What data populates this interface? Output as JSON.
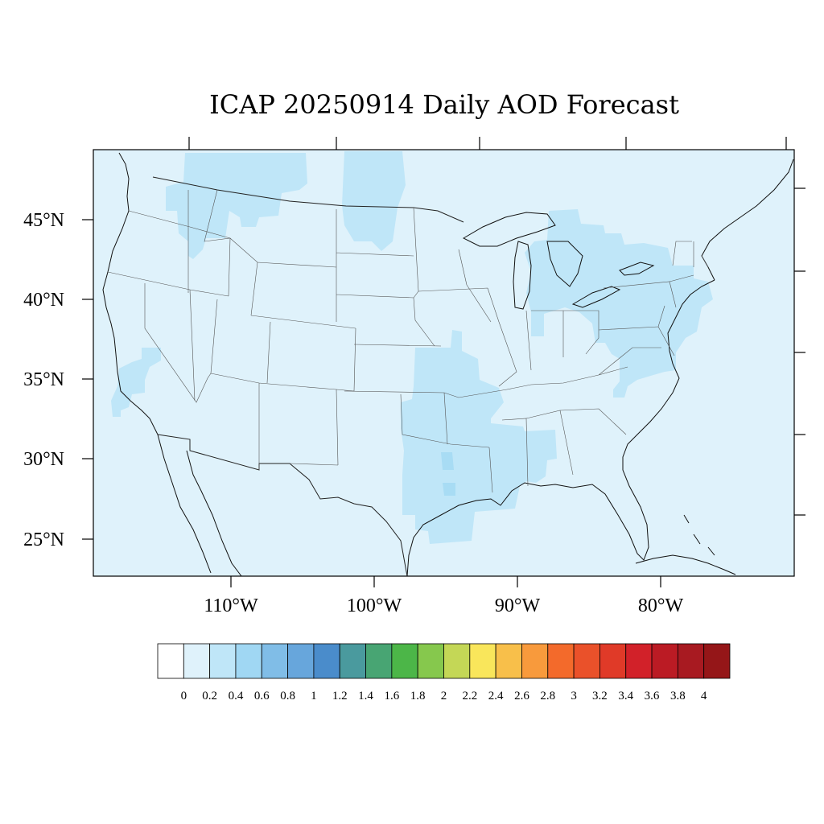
{
  "map": {
    "title": "ICAP 20250914 Daily AOD Forecast",
    "lat_labels": [
      "45°N",
      "40°N",
      "35°N",
      "30°N",
      "25°N"
    ],
    "lon_labels": [
      "110°W",
      "100°W",
      "90°W",
      "80°W"
    ],
    "background_color": "#dff2fb",
    "highlight_color": "#bfe6f8",
    "highlight_strong_color": "#a8dcf4"
  },
  "colorbar": {
    "labels": [
      "0",
      "0.2",
      "0.4",
      "0.6",
      "0.8",
      "1",
      "1.2",
      "1.4",
      "1.6",
      "1.8",
      "2",
      "2.2",
      "2.4",
      "2.6",
      "2.8",
      "3",
      "3.2",
      "3.4",
      "3.6",
      "3.8",
      "4"
    ],
    "colors": [
      "#ffffff",
      "#dff2fb",
      "#bfe6f8",
      "#a0d7f3",
      "#80bde7",
      "#67a6dc",
      "#4a8ccb",
      "#4a9a9e",
      "#48a573",
      "#4cb648",
      "#86c84d",
      "#c4d756",
      "#f9e65b",
      "#f8bf4a",
      "#f89a3c",
      "#f36a2b",
      "#ea512a",
      "#e03a28",
      "#d22129",
      "#bb1b24",
      "#a81a21",
      "#951618"
    ]
  }
}
